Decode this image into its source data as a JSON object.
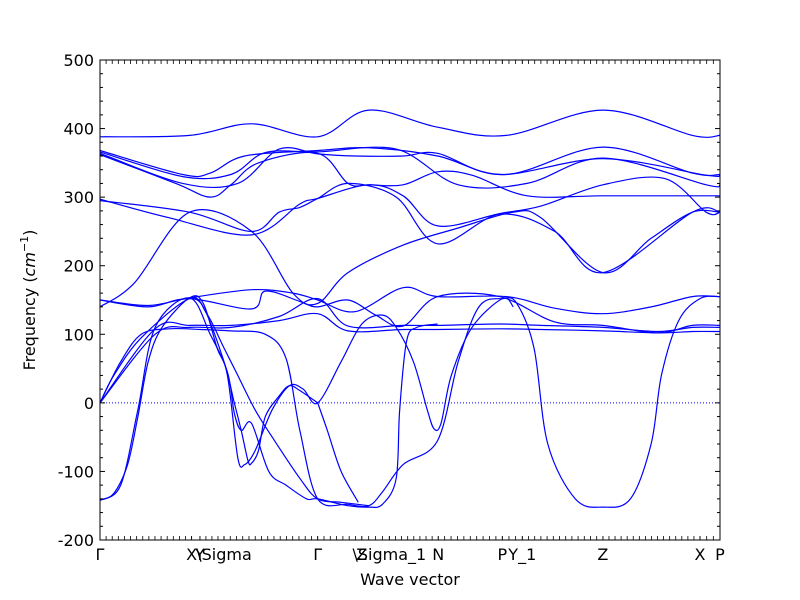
{
  "chart_data": {
    "type": "line",
    "title": "",
    "xlabel": "Wave vector",
    "ylabel": "Frequency (cm⁻¹)",
    "ylabel_prefix": "Frequency (",
    "ylabel_unit": "cm",
    "ylabel_exp": "−1",
    "ylabel_suffix": ")",
    "ylim": [
      -200,
      500
    ],
    "yticks": [
      -200,
      -100,
      0,
      100,
      200,
      300,
      400,
      500
    ],
    "xlim": [
      0,
      9.0
    ],
    "grid": false,
    "legend": "none",
    "line_color": "#0000ff",
    "zero_line": {
      "y": 0,
      "style": "dotted",
      "color": "#0000ff"
    },
    "high_symmetry_points": [
      {
        "label": "Γ",
        "x": 0.0
      },
      {
        "label": "X",
        "x": 1.33
      },
      {
        "label": "Y",
        "x": 1.45
      },
      {
        "label": "\\Sigma",
        "x": 1.8
      },
      {
        "label": "Γ",
        "x": 3.16
      },
      {
        "label": "Z",
        "x": 3.8
      },
      {
        "label": "\\Sigma_1",
        "x": 4.2
      },
      {
        "label": "N",
        "x": 4.91
      },
      {
        "label": "P",
        "x": 5.84
      },
      {
        "label": "Y_1",
        "x": 6.13
      },
      {
        "label": "Z",
        "x": 7.3
      },
      {
        "label": "X",
        "x": 8.71
      },
      {
        "label": "P",
        "x": 9.0
      }
    ],
    "series": [
      {
        "points": [
          [
            0,
            388
          ],
          [
            1.3,
            390
          ],
          [
            2.2,
            407
          ],
          [
            3.16,
            388
          ],
          [
            3.9,
            427
          ],
          [
            4.9,
            402
          ],
          [
            5.9,
            390
          ],
          [
            7.3,
            427
          ],
          [
            8.6,
            390
          ],
          [
            9.0,
            390
          ]
        ]
      },
      {
        "points": [
          [
            0,
            368
          ],
          [
            1.2,
            333
          ],
          [
            1.6,
            335
          ],
          [
            2.1,
            360
          ],
          [
            3.16,
            368
          ],
          [
            3.9,
            372
          ],
          [
            4.9,
            360
          ],
          [
            5.9,
            333
          ],
          [
            7.3,
            373
          ],
          [
            8.6,
            335
          ],
          [
            9.0,
            333
          ]
        ]
      },
      {
        "points": [
          [
            0,
            366
          ],
          [
            1.2,
            330
          ],
          [
            1.9,
            333
          ],
          [
            2.4,
            365
          ],
          [
            3.16,
            366
          ],
          [
            4.3,
            370
          ],
          [
            5.2,
            318
          ],
          [
            6.2,
            320
          ],
          [
            7.3,
            357
          ],
          [
            8.8,
            318
          ],
          [
            9.0,
            318
          ]
        ]
      },
      {
        "points": [
          [
            0,
            364
          ],
          [
            1.2,
            320
          ],
          [
            2.0,
            320
          ],
          [
            2.6,
            370
          ],
          [
            3.16,
            363
          ],
          [
            3.7,
            360
          ],
          [
            4.4,
            360
          ],
          [
            4.9,
            364
          ],
          [
            5.8,
            333
          ],
          [
            7.3,
            356
          ],
          [
            8.8,
            332
          ],
          [
            9.0,
            332
          ]
        ]
      },
      {
        "points": [
          [
            0,
            362
          ],
          [
            1.1,
            320
          ],
          [
            1.6,
            300
          ],
          [
            1.9,
            318
          ],
          [
            2.3,
            350
          ],
          [
            3.16,
            364
          ],
          [
            3.6,
            320
          ],
          [
            3.9,
            318
          ],
          [
            4.4,
            318
          ],
          [
            4.9,
            337
          ],
          [
            5.4,
            332
          ],
          [
            6.2,
            302
          ],
          [
            7.3,
            302
          ],
          [
            8.8,
            302
          ],
          [
            9.0,
            302
          ]
        ]
      },
      {
        "points": [
          [
            0,
            297
          ],
          [
            1.0,
            270
          ],
          [
            2.2,
            245
          ],
          [
            2.9,
            290
          ],
          [
            3.16,
            298
          ],
          [
            3.9,
            318
          ],
          [
            4.4,
            302
          ],
          [
            4.9,
            258
          ],
          [
            5.8,
            276
          ],
          [
            6.4,
            287
          ],
          [
            7.3,
            318
          ],
          [
            8.2,
            327
          ],
          [
            8.8,
            278
          ],
          [
            9.0,
            278
          ]
        ]
      },
      {
        "points": [
          [
            0,
            295
          ],
          [
            1.3,
            278
          ],
          [
            2.2,
            250
          ],
          [
            2.6,
            278
          ],
          [
            2.9,
            285
          ],
          [
            3.16,
            298
          ],
          [
            3.6,
            320
          ],
          [
            4.3,
            300
          ],
          [
            4.9,
            232
          ],
          [
            5.8,
            275
          ],
          [
            6.6,
            250
          ],
          [
            7.3,
            190
          ],
          [
            8.6,
            278
          ],
          [
            9.0,
            278
          ]
        ]
      },
      {
        "points": [
          [
            0,
            140
          ],
          [
            0.5,
            175
          ],
          [
            1.3,
            278
          ],
          [
            2.2,
            250
          ],
          [
            2.8,
            160
          ],
          [
            3.16,
            145
          ],
          [
            3.6,
            190
          ],
          [
            4.4,
            230
          ],
          [
            5.2,
            255
          ],
          [
            6.0,
            278
          ],
          [
            6.4,
            270
          ],
          [
            7.3,
            190
          ],
          [
            8.0,
            240
          ],
          [
            8.6,
            278
          ],
          [
            9.0,
            278
          ]
        ]
      },
      {
        "points": [
          [
            0,
            150
          ],
          [
            0.7,
            142
          ],
          [
            1.3,
            153
          ],
          [
            2.2,
            165
          ],
          [
            2.8,
            160
          ],
          [
            3.16,
            150
          ],
          [
            3.7,
            133
          ],
          [
            4.4,
            168
          ],
          [
            4.9,
            155
          ],
          [
            5.9,
            155
          ],
          [
            6.6,
            138
          ],
          [
            7.3,
            130
          ],
          [
            8.0,
            140
          ],
          [
            8.6,
            155
          ],
          [
            9.0,
            155
          ]
        ]
      },
      {
        "points": [
          [
            0,
            150
          ],
          [
            0.7,
            140
          ],
          [
            1.3,
            152
          ],
          [
            2.2,
            137
          ],
          [
            2.4,
            163
          ],
          [
            2.9,
            148
          ],
          [
            3.16,
            140
          ],
          [
            3.6,
            150
          ],
          [
            4.0,
            128
          ],
          [
            4.4,
            112
          ],
          [
            4.9,
            155
          ],
          [
            5.8,
            155
          ],
          [
            6.6,
            118
          ],
          [
            7.3,
            113
          ],
          [
            8.1,
            102
          ],
          [
            8.6,
            113
          ],
          [
            9.0,
            113
          ]
        ]
      },
      {
        "points": [
          [
            0,
            0
          ],
          [
            0.8,
            100
          ],
          [
            1.3,
            110
          ],
          [
            1.9,
            110
          ],
          [
            2.6,
            126
          ],
          [
            3.16,
            152
          ],
          [
            3.6,
            112
          ],
          [
            4.4,
            113
          ],
          [
            4.9,
            113
          ],
          [
            5.8,
            115
          ],
          [
            6.4,
            113
          ],
          [
            7.3,
            110
          ],
          [
            8.1,
            104
          ],
          [
            8.6,
            110
          ],
          [
            9.0,
            110
          ]
        ]
      },
      {
        "points": [
          [
            0,
            0
          ],
          [
            0.8,
            108
          ],
          [
            1.3,
            113
          ],
          [
            1.9,
            113
          ],
          [
            2.6,
            120
          ],
          [
            3.16,
            130
          ],
          [
            3.6,
            105
          ],
          [
            4.4,
            107
          ],
          [
            4.9,
            107
          ],
          [
            5.8,
            108
          ],
          [
            6.4,
            107
          ],
          [
            7.3,
            105
          ],
          [
            8.1,
            102
          ],
          [
            8.6,
            104
          ],
          [
            9.0,
            104
          ]
        ]
      },
      {
        "points": [
          [
            0,
            0
          ],
          [
            0.3,
            60
          ],
          [
            0.6,
            100
          ],
          [
            1.0,
            108
          ],
          [
            1.45,
            107
          ],
          [
            1.9,
            105
          ],
          [
            2.4,
            100
          ],
          [
            2.7,
            65
          ],
          [
            2.9,
            -40
          ],
          [
            3.16,
            -140
          ],
          [
            3.6,
            -148
          ],
          [
            3.9,
            -150
          ],
          [
            4.1,
            -130
          ],
          [
            4.4,
            -90
          ],
          [
            4.9,
            -55
          ],
          [
            5.2,
            60
          ],
          [
            5.5,
            140
          ],
          [
            5.84,
            152
          ],
          [
            6.05,
            145
          ],
          [
            6.3,
            80
          ],
          [
            6.5,
            -60
          ],
          [
            6.9,
            -140
          ],
          [
            7.3,
            -152
          ],
          [
            7.7,
            -140
          ],
          [
            8.0,
            -60
          ],
          [
            8.15,
            40
          ],
          [
            8.4,
            120
          ],
          [
            8.71,
            152
          ],
          [
            9.0,
            155
          ]
        ]
      },
      {
        "points": [
          [
            0,
            -142
          ],
          [
            0.2,
            -132
          ],
          [
            0.4,
            -90
          ],
          [
            0.55,
            -20
          ],
          [
            0.7,
            60
          ],
          [
            0.9,
            110
          ],
          [
            1.3,
            153
          ],
          [
            1.5,
            145
          ],
          [
            1.7,
            80
          ],
          [
            1.85,
            40
          ],
          [
            2.0,
            -80
          ],
          [
            2.1,
            -90
          ],
          [
            2.25,
            -70
          ],
          [
            2.5,
            -10
          ],
          [
            2.75,
            25
          ],
          [
            2.95,
            20
          ],
          [
            3.16,
            0
          ],
          [
            3.5,
            60
          ],
          [
            3.8,
            115
          ],
          [
            4.1,
            128
          ],
          [
            4.3,
            110
          ],
          [
            4.55,
            60
          ],
          [
            4.75,
            -10
          ],
          [
            4.85,
            -38
          ],
          [
            4.95,
            -30
          ],
          [
            5.1,
            40
          ],
          [
            5.4,
            110
          ],
          [
            5.84,
            152
          ],
          [
            6.0,
            140
          ]
        ]
      },
      {
        "points": [
          [
            0,
            -142
          ],
          [
            0.3,
            -120
          ],
          [
            0.55,
            -10
          ],
          [
            0.8,
            110
          ],
          [
            1.3,
            153
          ],
          [
            1.6,
            100
          ],
          [
            1.85,
            45
          ],
          [
            1.95,
            -15
          ],
          [
            2.05,
            -40
          ],
          [
            2.2,
            -30
          ],
          [
            2.45,
            -100
          ],
          [
            2.7,
            -120
          ],
          [
            3.0,
            -140
          ],
          [
            3.16,
            -140
          ],
          [
            3.6,
            -150
          ],
          [
            3.9,
            -152
          ],
          [
            4.1,
            -148
          ],
          [
            4.3,
            -110
          ],
          [
            4.35,
            -10
          ],
          [
            4.45,
            90
          ],
          [
            4.6,
            110
          ],
          [
            4.9,
            115
          ]
        ]
      },
      {
        "points": [
          [
            0,
            0
          ],
          [
            0.2,
            40
          ],
          [
            0.6,
            95
          ],
          [
            1.3,
            152
          ],
          [
            1.55,
            130
          ],
          [
            1.8,
            80
          ],
          [
            2.0,
            40
          ],
          [
            2.25,
            -10
          ],
          [
            2.5,
            -50
          ],
          [
            2.9,
            -110
          ],
          [
            3.16,
            -140
          ],
          [
            3.5,
            -145
          ],
          [
            3.9,
            -150
          ]
        ]
      },
      {
        "points": [
          [
            1.3,
            153
          ],
          [
            1.5,
            140
          ],
          [
            1.8,
            60
          ],
          [
            1.95,
            0
          ],
          [
            2.05,
            -40
          ],
          [
            2.15,
            -85
          ],
          [
            2.2,
            -88
          ],
          [
            2.3,
            -70
          ],
          [
            2.4,
            -20
          ],
          [
            2.6,
            10
          ],
          [
            2.75,
            25
          ],
          [
            2.9,
            18
          ],
          [
            3.16,
            0
          ]
        ]
      },
      {
        "points": [
          [
            3.16,
            0
          ],
          [
            3.3,
            -40
          ],
          [
            3.5,
            -100
          ],
          [
            3.75,
            -145
          ]
        ]
      }
    ]
  }
}
